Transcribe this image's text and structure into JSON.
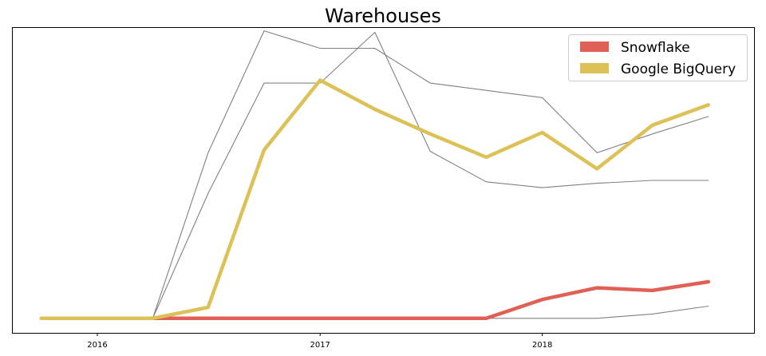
{
  "chart_data": {
    "type": "line",
    "title": "Warehouses",
    "xlabel": "",
    "ylabel": "",
    "x": [
      "2015-10-01",
      "2016-01-01",
      "2016-04-01",
      "2016-07-01",
      "2016-10-01",
      "2017-01-01",
      "2017-04-01",
      "2017-07-01",
      "2017-10-01",
      "2018-01-01",
      "2018-04-01",
      "2018-07-01",
      "2018-10-01"
    ],
    "x_ticks": [
      "2016",
      "2017",
      "2018"
    ],
    "x_tick_dates": [
      "2016-01-01",
      "2017-01-01",
      "2018-01-01"
    ],
    "xlim": [
      "2015-08-15",
      "2018-12-15"
    ],
    "ylim": [
      -0.05,
      1.0
    ],
    "y_ticks_shown": false,
    "grid": false,
    "legend_position": "top-right",
    "series": [
      {
        "name": "Snowflake",
        "color": "#e06055",
        "highlighted": true,
        "values": [
          0,
          0,
          0,
          0,
          0,
          0,
          0,
          0,
          0,
          0.065,
          0.105,
          0.096,
          0.126
        ]
      },
      {
        "name": "Google BigQuery",
        "color": "#dcc156",
        "highlighted": true,
        "values": [
          0,
          0,
          0,
          0.038,
          0.58,
          0.82,
          0.72,
          0.635,
          0.555,
          0.64,
          0.515,
          0.665,
          0.735
        ]
      },
      {
        "name": "",
        "color": "#808080",
        "highlighted": false,
        "values": [
          0,
          0,
          0,
          0.57,
          0.99,
          0.93,
          0.93,
          0.81,
          0.785,
          0.76,
          0.57,
          0.635,
          0.695
        ]
      },
      {
        "name": "",
        "color": "#808080",
        "highlighted": false,
        "values": [
          0,
          0,
          0,
          0.43,
          0.81,
          0.81,
          0.985,
          0.575,
          0.47,
          0.45,
          0.465,
          0.475,
          0.475
        ]
      },
      {
        "name": "",
        "color": "#808080",
        "highlighted": false,
        "values": [
          0,
          0,
          0,
          0,
          0,
          0,
          0,
          0,
          0,
          0,
          0,
          0.015,
          0.042
        ]
      }
    ]
  }
}
